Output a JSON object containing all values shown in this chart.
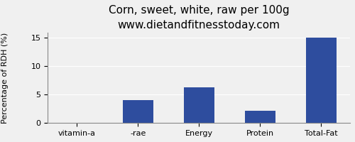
{
  "title": "Corn, sweet, white, raw per 100g",
  "subtitle": "www.dietandfitnesstoday.com",
  "categories": [
    "vitamin-a",
    "-rae",
    "Energy",
    "Protein",
    "Total-Fat"
  ],
  "values": [
    0,
    4,
    6.3,
    2.2,
    15
  ],
  "bar_color": "#2e4d9e",
  "ylabel": "Percentage of RDH (%)",
  "ylim": [
    0,
    16
  ],
  "yticks": [
    0,
    5,
    10,
    15
  ],
  "background_color": "#f0f0f0",
  "title_fontsize": 11,
  "subtitle_fontsize": 9,
  "ylabel_fontsize": 8,
  "tick_fontsize": 8
}
